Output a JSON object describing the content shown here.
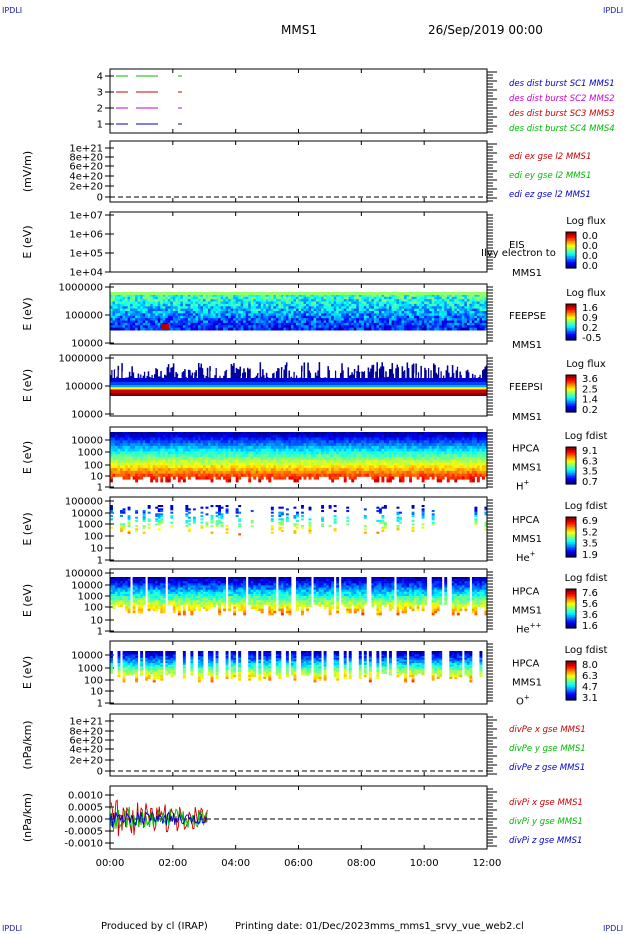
{
  "corner_label": "IPDLI",
  "header": {
    "spacecraft": "MMS1",
    "datetime": "26/Sep/2019 00:00"
  },
  "footer": {
    "produced_by": "Produced by cl (IRAP)",
    "printing_date": "Printing date: 01/Dec/2023",
    "filename": "mms_mms1_srvy_vue_web2.cl"
  },
  "colors": {
    "axis": "#000000",
    "legend_blue": "#0000cc",
    "legend_red": "#cc0000",
    "legend_magenta": "#cc00cc",
    "legend_green": "#00bb00",
    "corner_blue": "#1a1aa6"
  },
  "chart_data": {
    "type": "stacked-timeseries",
    "x_range": [
      "00:00",
      "12:00"
    ],
    "x_ticks": [
      "00:00",
      "02:00",
      "04:00",
      "06:00",
      "08:00",
      "10:00",
      "12:00"
    ],
    "panels": [
      {
        "id": "burst",
        "type": "line",
        "ylabel": "",
        "yticks": [
          "1",
          "2",
          "3",
          "4"
        ],
        "series": [
          {
            "name": "des dist burst SC1 MMS1",
            "color": "#0000cc",
            "level": 1
          },
          {
            "name": "des dist burst SC2 MMS2",
            "color": "#cc00cc",
            "level": 2
          },
          {
            "name": "des dist burst SC3 MMS3",
            "color": "#cc0000",
            "level": 3
          },
          {
            "name": "des dist burst SC4 MMS4",
            "color": "#00bb00",
            "level": 4
          }
        ]
      },
      {
        "id": "edi",
        "type": "line",
        "ylabel": "(mV/m)",
        "yticks": [
          "0",
          "2e+20",
          "4e+20",
          "6e+20",
          "8e+20",
          "1e+21"
        ],
        "series": [
          {
            "name": "edi ex gse l2 MMS1",
            "color": "#cc0000"
          },
          {
            "name": "edi ey gse l2 MMS1",
            "color": "#00bb00"
          },
          {
            "name": "edi ez gse l2 MMS1",
            "color": "#0000cc"
          }
        ]
      },
      {
        "id": "eis",
        "type": "spectrogram",
        "ylabel": "E (eV)",
        "yticks": [
          "1e+04",
          "1e+05",
          "1e+06",
          "1e+07"
        ],
        "instrument": [
          "EIS",
          "MMS1"
        ],
        "overlay_text": "Ilvy electron to",
        "colorbar": {
          "title": "Log flux",
          "ticks": [
            "0.0",
            "0.0",
            "0.0",
            "0.0"
          ]
        }
      },
      {
        "id": "feepse",
        "type": "spectrogram",
        "ylabel": "E (eV)",
        "yticks": [
          "10000",
          "100000",
          "1000000"
        ],
        "instrument": [
          "FEEPSE",
          "MMS1"
        ],
        "colorbar": {
          "title": "Log flux",
          "ticks": [
            "1.6",
            "0.9",
            "0.2",
            "-0.5"
          ]
        }
      },
      {
        "id": "feepsi",
        "type": "spectrogram",
        "ylabel": "E (eV)",
        "yticks": [
          "10000",
          "100000",
          "1000000"
        ],
        "instrument": [
          "FEEPSI",
          "MMS1"
        ],
        "colorbar": {
          "title": "Log flux",
          "ticks": [
            "3.6",
            "2.5",
            "1.4",
            "0.2"
          ]
        }
      },
      {
        "id": "hpca_h",
        "type": "spectrogram",
        "ylabel": "E (eV)",
        "yticks": [
          "1",
          "10",
          "100",
          "1000",
          "10000"
        ],
        "instrument": [
          "HPCA",
          "MMS1"
        ],
        "species": "H",
        "species_charge": "+",
        "colorbar": {
          "title": "Log fdist",
          "ticks": [
            "9.1",
            "6.3",
            "3.5",
            "0.7"
          ]
        }
      },
      {
        "id": "hpca_he",
        "type": "spectrogram",
        "ylabel": "E (eV)",
        "yticks": [
          "1",
          "10",
          "100",
          "1000",
          "10000",
          "100000"
        ],
        "instrument": [
          "HPCA",
          "MMS1"
        ],
        "species": "He",
        "species_charge": "+",
        "colorbar": {
          "title": "Log fdist",
          "ticks": [
            "6.9",
            "5.2",
            "3.5",
            "1.9"
          ]
        }
      },
      {
        "id": "hpca_hepp",
        "type": "spectrogram",
        "ylabel": "E (eV)",
        "yticks": [
          "1",
          "10",
          "100",
          "1000",
          "10000",
          "100000"
        ],
        "instrument": [
          "HPCA",
          "MMS1"
        ],
        "species": "He",
        "species_charge": "++",
        "colorbar": {
          "title": "Log fdist",
          "ticks": [
            "7.6",
            "5.6",
            "3.6",
            "1.6"
          ]
        }
      },
      {
        "id": "hpca_o",
        "type": "spectrogram",
        "ylabel": "E (eV)",
        "yticks": [
          "1",
          "10",
          "100",
          "1000",
          "10000"
        ],
        "instrument": [
          "HPCA",
          "MMS1"
        ],
        "species": "O",
        "species_charge": "+",
        "colorbar": {
          "title": "Log fdist",
          "ticks": [
            "8.0",
            "6.3",
            "4.7",
            "3.1"
          ]
        }
      },
      {
        "id": "divpe",
        "type": "line",
        "ylabel": "(nPa/km)",
        "yticks": [
          "0",
          "2e+20",
          "4e+20",
          "6e+20",
          "8e+20",
          "1e+21"
        ],
        "series": [
          {
            "name": "divPe x gse MMS1",
            "color": "#cc0000"
          },
          {
            "name": "divPe y gse MMS1",
            "color": "#00bb00"
          },
          {
            "name": "divPe z gse MMS1",
            "color": "#0000cc"
          }
        ]
      },
      {
        "id": "divpi",
        "type": "line",
        "ylabel": "(nPa/km)",
        "yticks": [
          "-0.0010",
          "-0.0005",
          "0.0000",
          "0.0005",
          "0.0010"
        ],
        "series": [
          {
            "name": "divPi x gse MMS1",
            "color": "#cc0000"
          },
          {
            "name": "divPi y gse MMS1",
            "color": "#00bb00"
          },
          {
            "name": "divPi z gse MMS1",
            "color": "#0000cc"
          }
        ]
      }
    ]
  }
}
